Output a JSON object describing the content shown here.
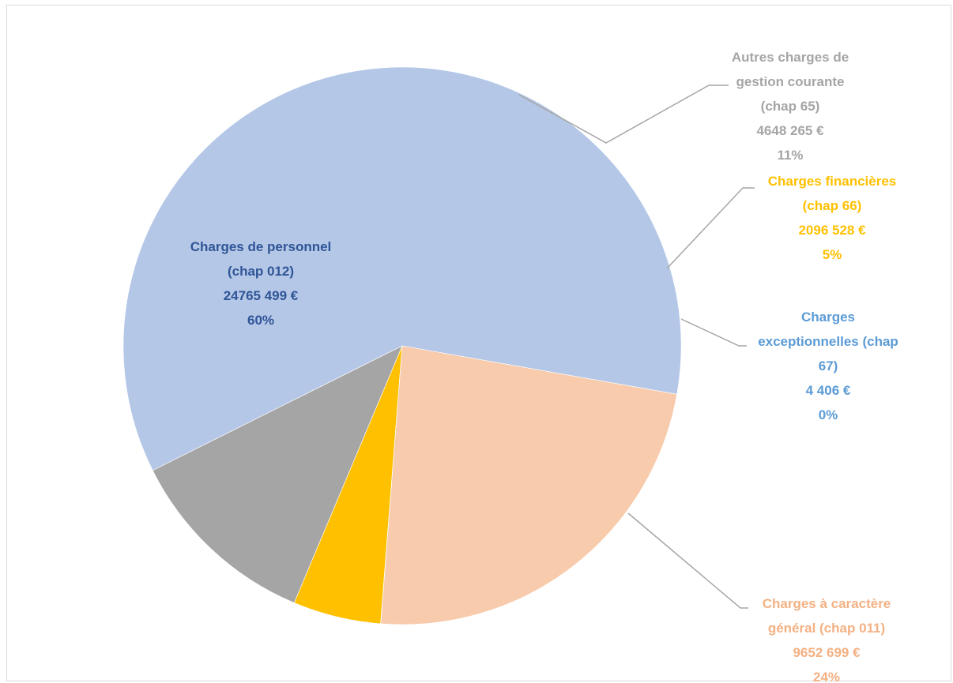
{
  "chart_data": {
    "type": "pie",
    "title": "",
    "start_angle_deg": 350,
    "direction": "counterclockwise",
    "slices": [
      {
        "key": "personnel",
        "lines": [
          "Charges de personnel",
          "(chap 012)",
          "24765 499 €",
          "60%"
        ],
        "value": 24765499,
        "color": "#b4c7e7",
        "label_color": "#2f5597"
      },
      {
        "key": "autres",
        "lines": [
          "Autres charges de",
          "gestion courante",
          "(chap 65)",
          "4648 265 €",
          "11%"
        ],
        "value": 4648265,
        "color": "#a5a5a5",
        "label_color": "#a5a5a5"
      },
      {
        "key": "financieres",
        "lines": [
          "Charges financières",
          "(chap 66)",
          "2096 528 €",
          "5%"
        ],
        "value": 2096528,
        "color": "#ffc000",
        "label_color": "#ffc000"
      },
      {
        "key": "exceptionnelles",
        "lines": [
          "Charges",
          "exceptionnelles (chap",
          "67)",
          "4 406 €",
          "0%"
        ],
        "value": 4406,
        "color": "#5b9bd5",
        "label_color": "#5b9bd5"
      },
      {
        "key": "generales",
        "lines": [
          "Charges à caractère",
          "général (chap 011)",
          "9652 699 €",
          "24%"
        ],
        "value": 9652699,
        "color": "#f8cbad",
        "label_color": "#f4b183"
      }
    ],
    "legend": "none"
  }
}
